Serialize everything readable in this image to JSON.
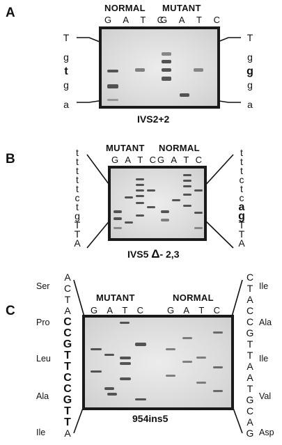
{
  "panel_a": {
    "letter": "A",
    "left_label": "NORMAL",
    "right_label": "MUTANT",
    "lanes_left": [
      "G",
      "A",
      "T",
      "C"
    ],
    "lanes_right": [
      "G",
      "A",
      "T",
      "C"
    ],
    "left_seq": [
      "T",
      "g",
      "t",
      "g",
      "a"
    ],
    "right_seq": [
      "T",
      "g",
      "g",
      "g",
      "a"
    ],
    "caption": "IVS2+2"
  },
  "panel_b": {
    "letter": "B",
    "left_label": "MUTANT",
    "right_label": "NORMAL",
    "lanes_left": [
      "G",
      "A",
      "T",
      "C"
    ],
    "lanes_right": [
      "G",
      "A",
      "T",
      "C"
    ],
    "left_seq": [
      "t",
      "t",
      "t",
      "t",
      "t",
      "c",
      "t",
      "g",
      "T",
      "T",
      "A"
    ],
    "right_seq": [
      "t",
      "t",
      "t",
      "c",
      "t",
      "c",
      "a",
      "g",
      "T",
      "T",
      "A"
    ],
    "caption_main": "IVS5",
    "caption_delta": "Δ",
    "caption_tail": "- 2,3"
  },
  "panel_c": {
    "letter": "C",
    "left_label": "MUTANT",
    "right_label": "NORMAL",
    "lanes_left": [
      "G",
      "A",
      "T",
      "C"
    ],
    "lanes_right": [
      "G",
      "A",
      "T",
      "C"
    ],
    "left_seq": [
      "A",
      "C",
      "T",
      "A",
      "C",
      "C",
      "G",
      "T",
      "T",
      "C",
      "C",
      "G",
      "T",
      "T",
      "A"
    ],
    "right_seq": [
      "C",
      "T",
      "A",
      "C",
      "C",
      "G",
      "T",
      "T",
      "A",
      "A",
      "T",
      "G",
      "C",
      "A",
      "G"
    ],
    "left_aa": [
      "Ser",
      "Pro",
      "Leu",
      "Ala",
      "Ile"
    ],
    "right_aa": [
      "Ile",
      "Ala",
      "Ile",
      "Val",
      "Asp"
    ],
    "caption": "954ins5"
  }
}
